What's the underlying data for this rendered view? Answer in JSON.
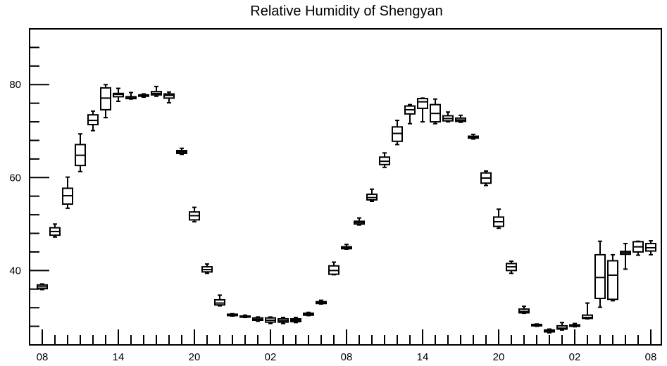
{
  "chart_data": {
    "type": "boxplot",
    "title": "Relative Humidity of Shengyan",
    "xlabel": "",
    "ylabel": "",
    "ylim": [
      24,
      92
    ],
    "xlim": [
      0,
      48
    ],
    "x_tick_labels": [
      "08",
      "14",
      "20",
      "02",
      "08",
      "14",
      "20",
      "02",
      "08"
    ],
    "x_tick_positions": [
      1,
      7,
      13,
      19,
      25,
      31,
      37,
      43,
      49
    ],
    "y_ticks": [
      40,
      60,
      80
    ],
    "grid": false,
    "legend": "none",
    "boxes": [
      {
        "x": 1,
        "min": 35.9,
        "q1": 36.1,
        "median": 36.5,
        "q3": 36.9,
        "max": 37.1
      },
      {
        "x": 2,
        "min": 47.2,
        "q1": 47.6,
        "median": 48.4,
        "q3": 49.2,
        "max": 50.0
      },
      {
        "x": 3,
        "min": 53.4,
        "q1": 54.3,
        "median": 56.1,
        "q3": 57.7,
        "max": 60.1
      },
      {
        "x": 4,
        "min": 61.3,
        "q1": 62.6,
        "median": 64.8,
        "q3": 67.1,
        "max": 69.4
      },
      {
        "x": 5,
        "min": 70.1,
        "q1": 71.4,
        "median": 72.3,
        "q3": 73.5,
        "max": 74.3
      },
      {
        "x": 6,
        "min": 72.9,
        "q1": 74.6,
        "median": 77.1,
        "q3": 79.3,
        "max": 80.0
      },
      {
        "x": 7,
        "min": 76.4,
        "q1": 77.4,
        "median": 77.9,
        "q3": 78.1,
        "max": 79.2
      },
      {
        "x": 8,
        "min": 76.9,
        "q1": 77.0,
        "median": 77.1,
        "q3": 77.4,
        "max": 78.3
      },
      {
        "x": 9,
        "min": 77.3,
        "q1": 77.5,
        "median": 77.7,
        "q3": 77.8,
        "max": 78.0
      },
      {
        "x": 10,
        "min": 77.5,
        "q1": 77.8,
        "median": 78.1,
        "q3": 78.5,
        "max": 79.6
      },
      {
        "x": 11,
        "min": 76.1,
        "q1": 77.1,
        "median": 77.7,
        "q3": 78.0,
        "max": 78.4
      },
      {
        "x": 12,
        "min": 65.0,
        "q1": 65.2,
        "median": 65.5,
        "q3": 65.8,
        "max": 66.3
      },
      {
        "x": 13,
        "min": 50.5,
        "q1": 50.9,
        "median": 51.8,
        "q3": 52.6,
        "max": 53.6
      },
      {
        "x": 14,
        "min": 39.4,
        "q1": 39.7,
        "median": 40.2,
        "q3": 40.8,
        "max": 41.4
      },
      {
        "x": 15,
        "min": 32.4,
        "q1": 32.6,
        "median": 33.0,
        "q3": 33.7,
        "max": 34.7
      },
      {
        "x": 16,
        "min": 30.2,
        "q1": 30.3,
        "median": 30.5,
        "q3": 30.6,
        "max": 30.7
      },
      {
        "x": 17,
        "min": 29.9,
        "q1": 30.0,
        "median": 30.1,
        "q3": 30.2,
        "max": 30.4
      },
      {
        "x": 18,
        "min": 29.1,
        "q1": 29.3,
        "median": 29.5,
        "q3": 29.8,
        "max": 30.0
      },
      {
        "x": 19,
        "min": 28.6,
        "q1": 28.9,
        "median": 29.3,
        "q3": 29.8,
        "max": 30.0
      },
      {
        "x": 20,
        "min": 28.6,
        "q1": 28.9,
        "median": 29.2,
        "q3": 29.6,
        "max": 29.9
      },
      {
        "x": 21,
        "min": 28.8,
        "q1": 29.0,
        "median": 29.3,
        "q3": 29.6,
        "max": 29.9
      },
      {
        "x": 22,
        "min": 30.3,
        "q1": 30.4,
        "median": 30.6,
        "q3": 30.8,
        "max": 31.0
      },
      {
        "x": 23,
        "min": 32.8,
        "q1": 32.9,
        "median": 33.1,
        "q3": 33.3,
        "max": 33.6
      },
      {
        "x": 24,
        "min": 39.1,
        "q1": 39.2,
        "median": 40.0,
        "q3": 41.0,
        "max": 41.8
      },
      {
        "x": 25,
        "min": 44.6,
        "q1": 44.7,
        "median": 44.9,
        "q3": 45.1,
        "max": 45.6
      },
      {
        "x": 26,
        "min": 49.8,
        "q1": 50.0,
        "median": 50.3,
        "q3": 50.6,
        "max": 51.3
      },
      {
        "x": 27,
        "min": 54.9,
        "q1": 55.2,
        "median": 55.7,
        "q3": 56.4,
        "max": 57.5
      },
      {
        "x": 28,
        "min": 62.2,
        "q1": 62.8,
        "median": 63.5,
        "q3": 64.4,
        "max": 65.3
      },
      {
        "x": 29,
        "min": 67.1,
        "q1": 67.8,
        "median": 69.5,
        "q3": 70.9,
        "max": 72.3
      },
      {
        "x": 30,
        "min": 71.6,
        "q1": 73.7,
        "median": 74.6,
        "q3": 75.4,
        "max": 75.7
      },
      {
        "x": 31,
        "min": 72.0,
        "q1": 74.9,
        "median": 76.3,
        "q3": 77.0,
        "max": 77.1
      },
      {
        "x": 32,
        "min": 71.6,
        "q1": 72.0,
        "median": 73.8,
        "q3": 75.7,
        "max": 76.9
      },
      {
        "x": 33,
        "min": 72.0,
        "q1": 72.2,
        "median": 72.7,
        "q3": 73.3,
        "max": 74.1
      },
      {
        "x": 34,
        "min": 71.9,
        "q1": 72.1,
        "median": 72.4,
        "q3": 72.8,
        "max": 73.4
      },
      {
        "x": 35,
        "min": 68.3,
        "q1": 68.5,
        "median": 68.7,
        "q3": 68.9,
        "max": 69.3
      },
      {
        "x": 36,
        "min": 58.3,
        "q1": 58.8,
        "median": 59.9,
        "q3": 61.0,
        "max": 61.4
      },
      {
        "x": 37,
        "min": 49.1,
        "q1": 49.5,
        "median": 50.5,
        "q3": 51.5,
        "max": 53.2
      },
      {
        "x": 38,
        "min": 39.4,
        "q1": 40.0,
        "median": 40.8,
        "q3": 41.5,
        "max": 42.0
      },
      {
        "x": 39,
        "min": 30.8,
        "q1": 30.9,
        "median": 31.2,
        "q3": 31.7,
        "max": 32.3
      },
      {
        "x": 40,
        "min": 28.0,
        "q1": 28.1,
        "median": 28.3,
        "q3": 28.4,
        "max": 28.5
      },
      {
        "x": 41,
        "min": 26.6,
        "q1": 26.8,
        "median": 27.0,
        "q3": 27.2,
        "max": 27.4
      },
      {
        "x": 42,
        "min": 27.2,
        "q1": 27.4,
        "median": 27.6,
        "q3": 28.1,
        "max": 28.8
      },
      {
        "x": 43,
        "min": 27.9,
        "q1": 28.0,
        "median": 28.1,
        "q3": 28.3,
        "max": 28.6
      },
      {
        "x": 44,
        "min": 29.6,
        "q1": 29.7,
        "median": 29.9,
        "q3": 30.4,
        "max": 33.0
      },
      {
        "x": 45,
        "min": 32.1,
        "q1": 34.0,
        "median": 38.5,
        "q3": 43.4,
        "max": 46.3
      },
      {
        "x": 46,
        "min": 33.5,
        "q1": 33.8,
        "median": 39.0,
        "q3": 42.1,
        "max": 43.4
      },
      {
        "x": 47,
        "min": 40.3,
        "q1": 43.5,
        "median": 43.8,
        "q3": 44.1,
        "max": 45.8
      },
      {
        "x": 48,
        "min": 43.3,
        "q1": 44.0,
        "median": 45.1,
        "q3": 46.2,
        "max": 46.3
      },
      {
        "x": 49,
        "min": 43.4,
        "q1": 44.2,
        "median": 44.9,
        "q3": 45.8,
        "max": 46.4
      }
    ]
  }
}
